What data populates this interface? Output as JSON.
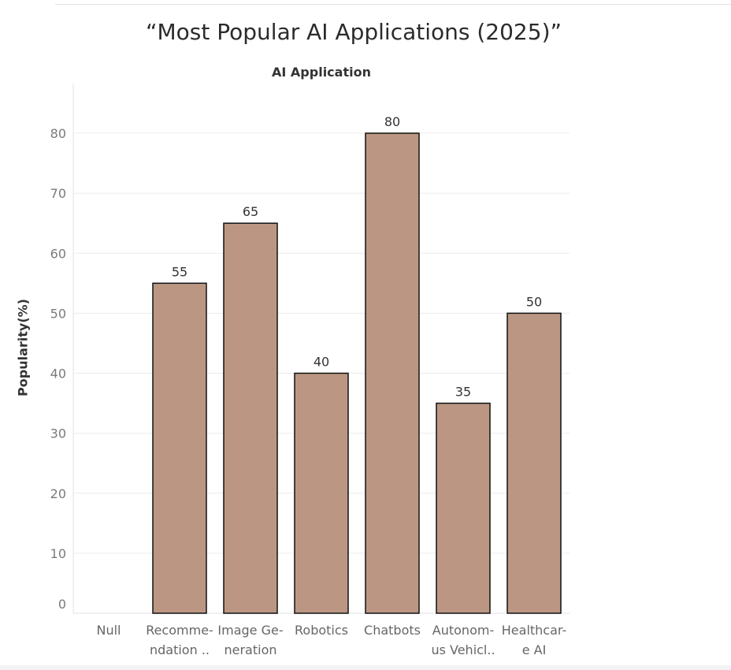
{
  "chart_data": {
    "type": "bar",
    "title": "“Most Popular AI Applications (2025)”",
    "xlabel": "AI Application",
    "ylabel": "Popularity(%)",
    "categories": [
      [
        "Null"
      ],
      [
        "Recomme-",
        "ndation .."
      ],
      [
        "Image Ge-",
        "neration"
      ],
      [
        "Robotics"
      ],
      [
        "Chatbots"
      ],
      [
        "Autonom-",
        "us Vehicl.."
      ],
      [
        "Healthcar-",
        "e AI"
      ]
    ],
    "values": [
      null,
      55,
      65,
      40,
      80,
      35,
      50
    ],
    "yticks": [
      0,
      10,
      20,
      30,
      40,
      50,
      60,
      70,
      80
    ],
    "ylim": [
      0,
      80
    ],
    "grid": true,
    "bar_color": "#bb9783",
    "bar_outline": "#111111"
  }
}
